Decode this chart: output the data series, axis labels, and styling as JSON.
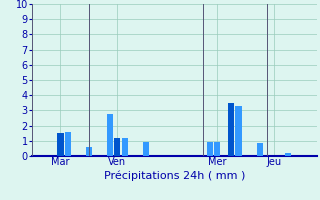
{
  "bars": [
    {
      "x": 4,
      "height": 1.5,
      "color": "#0055cc"
    },
    {
      "x": 5,
      "height": 1.55,
      "color": "#3399ff"
    },
    {
      "x": 8,
      "height": 0.6,
      "color": "#3399ff"
    },
    {
      "x": 11,
      "height": 2.75,
      "color": "#3399ff"
    },
    {
      "x": 12,
      "height": 1.2,
      "color": "#0055cc"
    },
    {
      "x": 13,
      "height": 1.2,
      "color": "#3399ff"
    },
    {
      "x": 16,
      "height": 0.95,
      "color": "#3399ff"
    },
    {
      "x": 25,
      "height": 0.95,
      "color": "#3399ff"
    },
    {
      "x": 26,
      "height": 0.9,
      "color": "#3399ff"
    },
    {
      "x": 28,
      "height": 3.5,
      "color": "#0055cc"
    },
    {
      "x": 29,
      "height": 3.3,
      "color": "#3399ff"
    },
    {
      "x": 32,
      "height": 0.85,
      "color": "#3399ff"
    },
    {
      "x": 36,
      "height": 0.2,
      "color": "#3399ff"
    }
  ],
  "vlines": [
    0,
    8,
    24,
    33
  ],
  "day_labels": [
    {
      "x": 4,
      "label": "Mar"
    },
    {
      "x": 12,
      "label": "Ven"
    },
    {
      "x": 26,
      "label": "Mer"
    },
    {
      "x": 34,
      "label": "Jeu"
    }
  ],
  "xlim": [
    0,
    40
  ],
  "ylim": [
    0,
    10
  ],
  "yticks": [
    0,
    1,
    2,
    3,
    4,
    5,
    6,
    7,
    8,
    9,
    10
  ],
  "xlabel": "Précipitations 24h ( mm )",
  "bg_color": "#ddf5f0",
  "bar_width": 0.85,
  "grid_color": "#99ccbb",
  "vline_color": "#555577",
  "bottom_line_color": "#0000aa",
  "xlabel_fontsize": 8,
  "tick_fontsize": 7,
  "bar_color_dark": "#0033bb",
  "bar_color_light": "#2288ee"
}
